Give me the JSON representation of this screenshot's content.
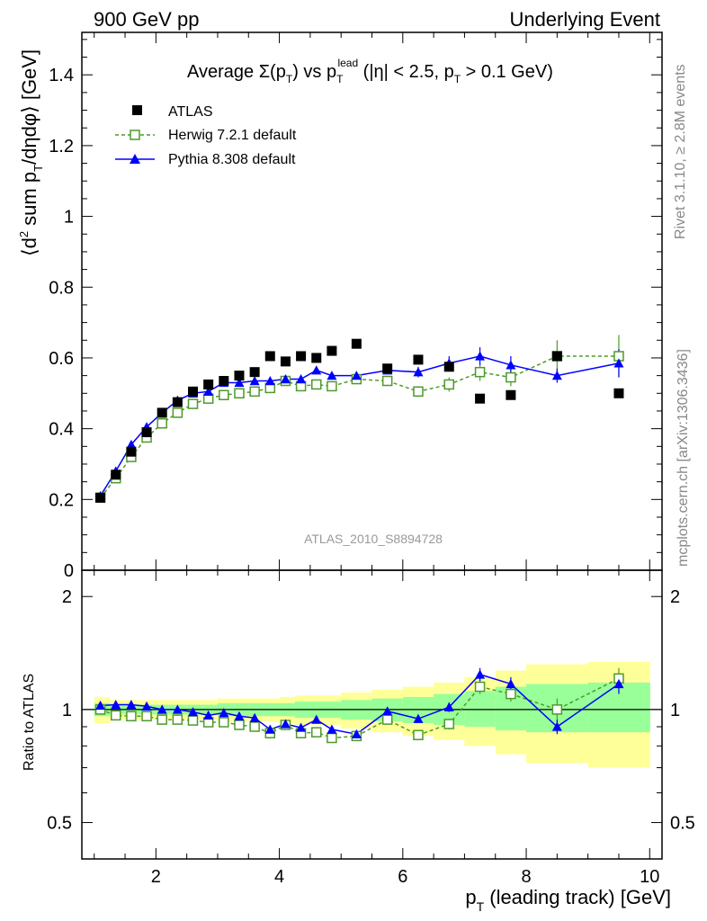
{
  "header": {
    "left": "900 GeV pp",
    "right": "Underlying Event"
  },
  "plot_title": {
    "prefix": "Average ",
    "sigma": "Σ(p",
    "sigma_sub": "T",
    "vs": ") vs p",
    "vs_sub": "T",
    "vs_sup": "lead",
    "cuts_a": " (|η| < 2.5, p",
    "cuts_sub": "T",
    "cuts_b": " > 0.1 GeV)"
  },
  "side_labels": {
    "rivet": "Rivet 3.1.10, ≥ 2.8M events",
    "mcplots": "mcplots.cern.ch [arXiv:1306.3436]"
  },
  "watermark": "ATLAS_2010_S8894728",
  "axes": {
    "ylabel_main": {
      "a": "⟨d",
      "sup": "2",
      "b": " sum p",
      "sub": "T",
      "c": "/dηdφ⟩ [GeV]"
    },
    "ylabel_ratio": "Ratio to ATLAS",
    "xlabel": {
      "a": "p",
      "sub": "T",
      "b": " (leading track) [GeV]"
    },
    "main_yticks": [
      "0",
      "0.2",
      "0.4",
      "0.6",
      "0.8",
      "1",
      "1.2",
      "1.4"
    ],
    "ratio_yticks_left": [
      "0.5",
      "1",
      "2"
    ],
    "ratio_yticks_right": [
      "0.5",
      "1",
      "2"
    ],
    "xticks": [
      "2",
      "4",
      "6",
      "8",
      "10"
    ]
  },
  "legend": [
    {
      "label": "ATLAS"
    },
    {
      "label": "Herwig 7.2.1 default"
    },
    {
      "label": "Pythia 8.308 default"
    }
  ],
  "colors": {
    "atlas": "#000000",
    "herwig": "#4d9a2a",
    "pythia": "#0000ff",
    "band_inner": "#99ff99",
    "band_outer": "#ffff99",
    "watermark": "#999999"
  },
  "chart_data": {
    "type": "scatter",
    "main_panel": {
      "xlim": [
        0.8,
        10.2
      ],
      "ylim": [
        0.0,
        1.52
      ],
      "x": [
        1.1,
        1.35,
        1.6,
        1.85,
        2.1,
        2.35,
        2.6,
        2.85,
        3.1,
        3.35,
        3.6,
        3.85,
        4.1,
        4.35,
        4.6,
        4.85,
        5.25,
        5.75,
        6.25,
        6.75,
        7.25,
        7.75,
        8.5,
        9.5
      ],
      "series": [
        {
          "name": "ATLAS",
          "style": "markers",
          "values": [
            0.205,
            0.27,
            0.335,
            0.39,
            0.445,
            0.475,
            0.505,
            0.525,
            0.535,
            0.55,
            0.56,
            0.605,
            0.59,
            0.605,
            0.6,
            0.62,
            0.64,
            0.57,
            0.595,
            0.575,
            0.485,
            0.495,
            0.605,
            0.5
          ]
        },
        {
          "name": "Herwig 7.2.1 default",
          "style": "dashed-open-squares",
          "values": [
            0.205,
            0.26,
            0.32,
            0.375,
            0.415,
            0.445,
            0.47,
            0.485,
            0.495,
            0.5,
            0.505,
            0.515,
            0.535,
            0.52,
            0.525,
            0.52,
            0.54,
            0.535,
            0.505,
            0.525,
            0.56,
            0.545,
            0.605,
            0.605
          ],
          "errors": [
            0.005,
            0.005,
            0.005,
            0.005,
            0.005,
            0.005,
            0.005,
            0.005,
            0.005,
            0.005,
            0.005,
            0.005,
            0.005,
            0.005,
            0.005,
            0.005,
            0.01,
            0.01,
            0.015,
            0.02,
            0.025,
            0.025,
            0.045,
            0.06
          ]
        },
        {
          "name": "Pythia 8.308 default",
          "style": "solid-triangles",
          "values": [
            0.21,
            0.28,
            0.355,
            0.405,
            0.445,
            0.48,
            0.5,
            0.505,
            0.53,
            0.53,
            0.535,
            0.535,
            0.54,
            0.54,
            0.565,
            0.55,
            0.55,
            0.565,
            0.56,
            0.585,
            0.605,
            0.58,
            0.55,
            0.585
          ],
          "errors": [
            0.005,
            0.005,
            0.005,
            0.005,
            0.005,
            0.005,
            0.005,
            0.005,
            0.005,
            0.005,
            0.005,
            0.005,
            0.005,
            0.005,
            0.005,
            0.005,
            0.01,
            0.01,
            0.015,
            0.02,
            0.025,
            0.025,
            0.02,
            0.04
          ]
        }
      ]
    },
    "ratio_panel": {
      "ylim": [
        0.4,
        2.35
      ],
      "yscale": "log",
      "reference": 1.0,
      "bins": [
        [
          1.0,
          1.25
        ],
        [
          1.25,
          1.5
        ],
        [
          1.5,
          1.75
        ],
        [
          1.75,
          2.0
        ],
        [
          2.0,
          2.25
        ],
        [
          2.25,
          2.5
        ],
        [
          2.5,
          2.75
        ],
        [
          2.75,
          3.0
        ],
        [
          3.0,
          3.25
        ],
        [
          3.25,
          3.5
        ],
        [
          3.5,
          3.75
        ],
        [
          3.75,
          4.0
        ],
        [
          4.0,
          4.25
        ],
        [
          4.25,
          4.5
        ],
        [
          4.5,
          4.75
        ],
        [
          4.75,
          5.0
        ],
        [
          5.0,
          5.5
        ],
        [
          5.5,
          6.0
        ],
        [
          6.0,
          6.5
        ],
        [
          6.5,
          7.0
        ],
        [
          7.0,
          7.5
        ],
        [
          7.5,
          8.0
        ],
        [
          8.0,
          9.0
        ],
        [
          9.0,
          10.0
        ]
      ],
      "band_inner": [
        [
          0.96,
          1.04
        ],
        [
          0.97,
          1.03
        ],
        [
          0.97,
          1.03
        ],
        [
          0.97,
          1.03
        ],
        [
          0.97,
          1.03
        ],
        [
          0.97,
          1.03
        ],
        [
          0.97,
          1.03
        ],
        [
          0.97,
          1.03
        ],
        [
          0.96,
          1.04
        ],
        [
          0.96,
          1.04
        ],
        [
          0.96,
          1.04
        ],
        [
          0.96,
          1.04
        ],
        [
          0.96,
          1.04
        ],
        [
          0.95,
          1.05
        ],
        [
          0.95,
          1.05
        ],
        [
          0.95,
          1.05
        ],
        [
          0.94,
          1.06
        ],
        [
          0.93,
          1.07
        ],
        [
          0.92,
          1.08
        ],
        [
          0.91,
          1.1
        ],
        [
          0.9,
          1.12
        ],
        [
          0.88,
          1.15
        ],
        [
          0.87,
          1.17
        ],
        [
          0.87,
          1.18
        ]
      ],
      "band_outer": [
        [
          0.92,
          1.08
        ],
        [
          0.94,
          1.06
        ],
        [
          0.94,
          1.06
        ],
        [
          0.94,
          1.06
        ],
        [
          0.94,
          1.06
        ],
        [
          0.94,
          1.06
        ],
        [
          0.94,
          1.06
        ],
        [
          0.94,
          1.06
        ],
        [
          0.93,
          1.07
        ],
        [
          0.93,
          1.07
        ],
        [
          0.93,
          1.07
        ],
        [
          0.93,
          1.07
        ],
        [
          0.92,
          1.08
        ],
        [
          0.91,
          1.09
        ],
        [
          0.91,
          1.09
        ],
        [
          0.91,
          1.09
        ],
        [
          0.89,
          1.11
        ],
        [
          0.87,
          1.13
        ],
        [
          0.85,
          1.15
        ],
        [
          0.83,
          1.18
        ],
        [
          0.8,
          1.22
        ],
        [
          0.76,
          1.27
        ],
        [
          0.72,
          1.32
        ],
        [
          0.7,
          1.34
        ]
      ],
      "series": [
        {
          "name": "Herwig 7.2.1 default",
          "values": [
            1.0,
            0.965,
            0.96,
            0.96,
            0.94,
            0.94,
            0.935,
            0.925,
            0.925,
            0.91,
            0.9,
            0.865,
            0.91,
            0.865,
            0.87,
            0.84,
            0.85,
            0.94,
            0.855,
            0.915,
            1.15,
            1.1,
            1.0,
            1.21
          ],
          "errors": [
            0.01,
            0.01,
            0.01,
            0.01,
            0.01,
            0.01,
            0.01,
            0.01,
            0.01,
            0.01,
            0.01,
            0.01,
            0.01,
            0.01,
            0.01,
            0.01,
            0.015,
            0.015,
            0.02,
            0.03,
            0.05,
            0.05,
            0.07,
            0.08
          ]
        },
        {
          "name": "Pythia 8.308 default",
          "values": [
            1.025,
            1.03,
            1.03,
            1.02,
            1.0,
            1.0,
            0.985,
            0.965,
            0.98,
            0.96,
            0.95,
            0.885,
            0.915,
            0.895,
            0.94,
            0.885,
            0.86,
            0.99,
            0.945,
            1.015,
            1.24,
            1.17,
            0.9,
            1.17
          ],
          "errors": [
            0.01,
            0.01,
            0.01,
            0.01,
            0.01,
            0.01,
            0.01,
            0.01,
            0.01,
            0.01,
            0.01,
            0.01,
            0.01,
            0.01,
            0.01,
            0.01,
            0.015,
            0.015,
            0.02,
            0.03,
            0.05,
            0.05,
            0.04,
            0.07
          ]
        }
      ]
    }
  }
}
